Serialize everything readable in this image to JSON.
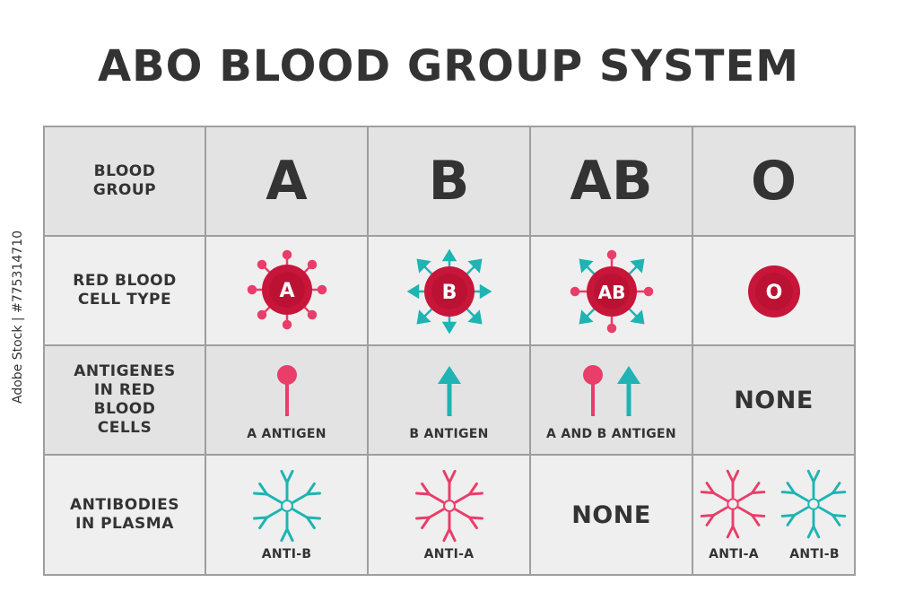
{
  "title": "ABO BLOOD GROUP SYSTEM",
  "row_labels": {
    "blood_group": "BLOOD\nGROUP",
    "rbc_type": "RED BLOOD\nCELL TYPE",
    "antigens": "ANTIGENES\nIN RED\nBLOOD\nCELLS",
    "antibodies": "ANTIBODIES\nIN PLASMA"
  },
  "groups": [
    "A",
    "B",
    "AB",
    "O"
  ],
  "cell_labels": [
    "A",
    "B",
    "AB",
    "O"
  ],
  "antigens": {
    "a": "A ANTIGEN",
    "b": "B ANTIGEN",
    "ab": "A AND B ANTIGEN",
    "o": "NONE"
  },
  "antibodies": {
    "a": "ANTI-B",
    "b": "ANTI-A",
    "ab": "NONE",
    "o_left": "ANTI-A",
    "o_right": "ANTI-B"
  },
  "watermark": {
    "brand": "Adobe Stock",
    "separator": "|",
    "id": "#775314710"
  },
  "colors": {
    "red_cell": "#c8163a",
    "pink": "#e93d6a",
    "teal": "#1fb3b3",
    "text": "#333333"
  }
}
